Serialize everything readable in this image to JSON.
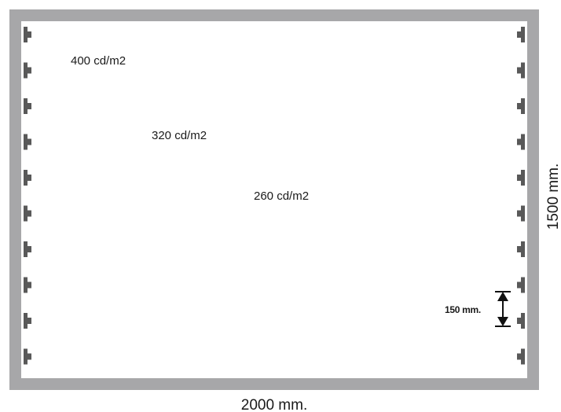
{
  "colors": {
    "frame": "#a7a7a9",
    "panel": "#ffffff",
    "led": "#595959",
    "ink": "#111111",
    "background": "#ffffff"
  },
  "luminance_labels": [
    "400 cd/m2",
    "320 cd/m2",
    "260 cd/m2"
  ],
  "dimensions": {
    "width_label": "2000 mm.",
    "height_label": "1500 mm.",
    "spacing_label": "150 mm."
  },
  "led_strips": {
    "left_count": 10,
    "right_count": 10
  }
}
